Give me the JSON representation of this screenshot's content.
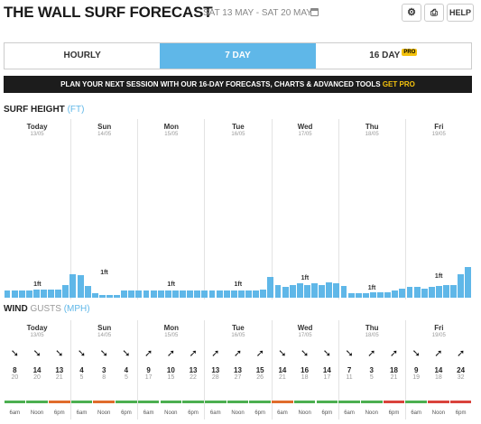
{
  "header": {
    "title": "THE WALL SURF FORECAST",
    "dates": "SAT 13 MAY - SAT 20 MAY",
    "help_label": "HELP"
  },
  "tabs": [
    {
      "label": "HOURLY",
      "active": false
    },
    {
      "label": "7 DAY",
      "active": true
    },
    {
      "label": "16 DAY",
      "active": false,
      "badge": "PRO"
    }
  ],
  "banner": {
    "text": "PLAN YOUR NEXT SESSION WITH OUR 16-DAY FORECASTS, CHARTS & ADVANCED TOOLS",
    "cta": "GET PRO"
  },
  "surf": {
    "label": "SURF HEIGHT",
    "unit": "(FT)",
    "days": [
      {
        "name": "Today",
        "date": "13/05",
        "height": "1ft"
      },
      {
        "name": "Sun",
        "date": "14/05",
        "height": "1ft"
      },
      {
        "name": "Mon",
        "date": "15/05",
        "height": "1ft"
      },
      {
        "name": "Tue",
        "date": "16/05",
        "height": "1ft"
      },
      {
        "name": "Wed",
        "date": "17/05",
        "height": "1ft"
      },
      {
        "name": "Thu",
        "date": "18/05",
        "height": "1ft"
      },
      {
        "name": "Fri",
        "date": "19/05",
        "height": "1ft"
      }
    ],
    "bar_heights": [
      0.3,
      0.3,
      0.32,
      0.32,
      0.34,
      0.34,
      0.34,
      0.34,
      0.55,
      1.0,
      0.95,
      0.5,
      0.2,
      0.1,
      0.1,
      0.12,
      0.3,
      0.3,
      0.32,
      0.32,
      0.3,
      0.3,
      0.32,
      0.32,
      0.32,
      0.3,
      0.3,
      0.3,
      0.3,
      0.3,
      0.32,
      0.32,
      0.32,
      0.32,
      0.32,
      0.35,
      0.9,
      0.55,
      0.45,
      0.55,
      0.6,
      0.55,
      0.6,
      0.55,
      0.65,
      0.6,
      0.5,
      0.2,
      0.2,
      0.2,
      0.22,
      0.22,
      0.22,
      0.3,
      0.4,
      0.45,
      0.45,
      0.4,
      0.45,
      0.5,
      0.55,
      0.55,
      1.0,
      1.3
    ],
    "label_heights": [
      0.34,
      0.85,
      0.34,
      0.34,
      0.6,
      0.2,
      0.7
    ]
  },
  "wind": {
    "label": "WIND",
    "gusts_label": "GUSTS",
    "unit": "(MPH)",
    "days": [
      {
        "name": "Today",
        "date": "13/05"
      },
      {
        "name": "Sun",
        "date": "14/05"
      },
      {
        "name": "Mon",
        "date": "15/05"
      },
      {
        "name": "Tue",
        "date": "16/05"
      },
      {
        "name": "Wed",
        "date": "17/05"
      },
      {
        "name": "Thu",
        "date": "18/05"
      },
      {
        "name": "Fri",
        "date": "19/05"
      }
    ],
    "speeds": [
      "8",
      "14",
      "13",
      "4",
      "3",
      "4",
      "9",
      "10",
      "13",
      "13",
      "13",
      "15",
      "14",
      "16",
      "14",
      "7",
      "3",
      "18",
      "9",
      "14",
      "24"
    ],
    "gusts": [
      "20",
      "20",
      "21",
      "5",
      "8",
      "5",
      "17",
      "15",
      "22",
      "28",
      "27",
      "26",
      "21",
      "18",
      "17",
      "11",
      "5",
      "21",
      "19",
      "18",
      "32"
    ],
    "arrow_rotations": [
      135,
      135,
      135,
      135,
      135,
      90,
      45,
      45,
      45,
      45,
      45,
      45,
      135,
      135,
      135,
      135,
      45,
      0,
      135,
      0,
      0
    ],
    "arrows": [
      "➘",
      "➘",
      "➘",
      "➘",
      "➘",
      "➘",
      "➚",
      "➚",
      "➚",
      "➚",
      "➚",
      "➚",
      "➘",
      "➘",
      "➘",
      "➘",
      "➚",
      "➚",
      "➘",
      "➚",
      "➚"
    ],
    "colors": [
      "#4caf50",
      "#4caf50",
      "#e06c2c",
      "#4caf50",
      "#e06c2c",
      "#4caf50",
      "#4caf50",
      "#4caf50",
      "#4caf50",
      "#4caf50",
      "#4caf50",
      "#4caf50",
      "#e06c2c",
      "#4caf50",
      "#4caf50",
      "#4caf50",
      "#4caf50",
      "#d9433c",
      "#4caf50",
      "#d9433c",
      "#d9433c"
    ],
    "times": [
      "6am",
      "Noon",
      "6pm"
    ]
  }
}
